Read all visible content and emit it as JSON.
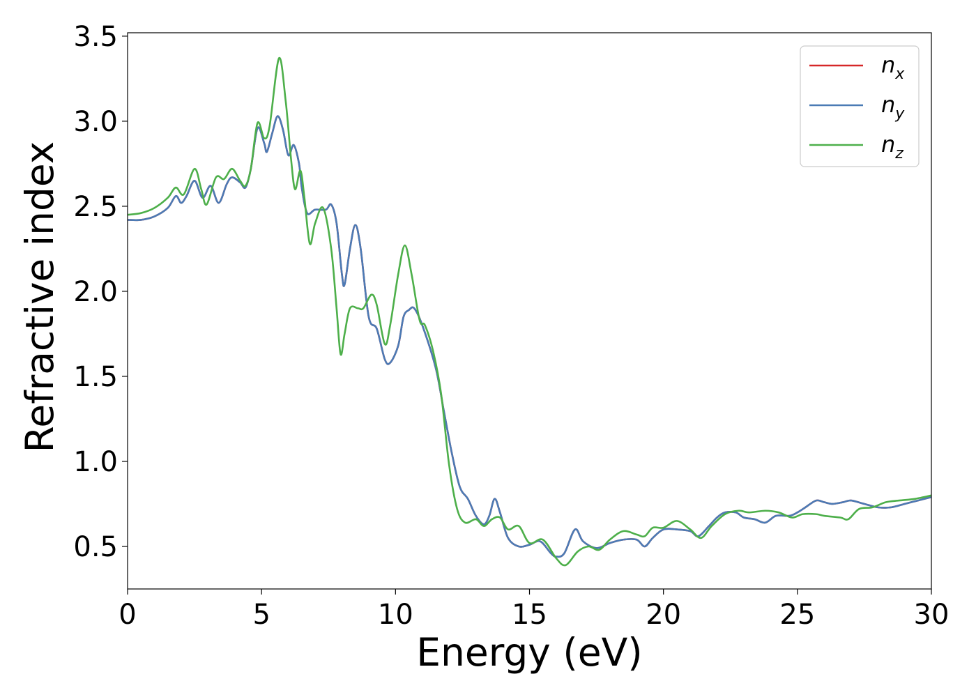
{
  "chart_data": {
    "type": "line",
    "xlabel": "Energy (eV)",
    "ylabel": "Refractive index",
    "xlim": [
      0,
      30
    ],
    "ylim": [
      0.25,
      3.52
    ],
    "xticks": [
      0,
      5,
      10,
      15,
      20,
      25,
      30
    ],
    "xtick_labels": [
      "0",
      "5",
      "10",
      "15",
      "20",
      "25",
      "30"
    ],
    "yticks": [
      0.5,
      1.0,
      1.5,
      2.0,
      2.5,
      3.0,
      3.5
    ],
    "ytick_labels": [
      "0.5",
      "1.0",
      "1.5",
      "2.0",
      "2.5",
      "3.0",
      "3.5"
    ],
    "grid": false,
    "legend_position": "top-right",
    "series": [
      {
        "name": "n_x",
        "label_base": "n",
        "label_sub": "x",
        "color": "#d62728",
        "points": [
          [
            0,
            2.42
          ],
          [
            0.5,
            2.42
          ],
          [
            1,
            2.44
          ],
          [
            1.5,
            2.49
          ],
          [
            1.8,
            2.56
          ],
          [
            2.0,
            2.52
          ],
          [
            2.2,
            2.56
          ],
          [
            2.5,
            2.65
          ],
          [
            2.8,
            2.55
          ],
          [
            3.1,
            2.62
          ],
          [
            3.4,
            2.52
          ],
          [
            3.7,
            2.63
          ],
          [
            3.9,
            2.67
          ],
          [
            4.2,
            2.64
          ],
          [
            4.4,
            2.61
          ],
          [
            4.6,
            2.72
          ],
          [
            4.85,
            2.96
          ],
          [
            5.1,
            2.87
          ],
          [
            5.2,
            2.82
          ],
          [
            5.4,
            2.93
          ],
          [
            5.6,
            3.03
          ],
          [
            5.8,
            2.95
          ],
          [
            6.0,
            2.8
          ],
          [
            6.2,
            2.86
          ],
          [
            6.4,
            2.75
          ],
          [
            6.5,
            2.61
          ],
          [
            6.7,
            2.46
          ],
          [
            7.0,
            2.48
          ],
          [
            7.4,
            2.48
          ],
          [
            7.6,
            2.51
          ],
          [
            7.8,
            2.4
          ],
          [
            8.0,
            2.1
          ],
          [
            8.1,
            2.04
          ],
          [
            8.3,
            2.25
          ],
          [
            8.5,
            2.39
          ],
          [
            8.7,
            2.25
          ],
          [
            9.0,
            1.85
          ],
          [
            9.3,
            1.78
          ],
          [
            9.6,
            1.6
          ],
          [
            9.8,
            1.58
          ],
          [
            10.1,
            1.68
          ],
          [
            10.3,
            1.85
          ],
          [
            10.5,
            1.89
          ],
          [
            10.7,
            1.9
          ],
          [
            11.0,
            1.8
          ],
          [
            11.5,
            1.55
          ],
          [
            11.8,
            1.3
          ],
          [
            12.1,
            1.05
          ],
          [
            12.4,
            0.85
          ],
          [
            12.7,
            0.78
          ],
          [
            13.0,
            0.68
          ],
          [
            13.3,
            0.63
          ],
          [
            13.5,
            0.68
          ],
          [
            13.7,
            0.78
          ],
          [
            13.9,
            0.7
          ],
          [
            14.2,
            0.55
          ],
          [
            14.6,
            0.5
          ],
          [
            15.0,
            0.51
          ],
          [
            15.4,
            0.53
          ],
          [
            15.8,
            0.46
          ],
          [
            16.0,
            0.44
          ],
          [
            16.3,
            0.46
          ],
          [
            16.7,
            0.6
          ],
          [
            17.0,
            0.53
          ],
          [
            17.5,
            0.49
          ],
          [
            18.0,
            0.52
          ],
          [
            18.5,
            0.54
          ],
          [
            19.0,
            0.54
          ],
          [
            19.3,
            0.5
          ],
          [
            19.6,
            0.55
          ],
          [
            20.0,
            0.6
          ],
          [
            20.5,
            0.6
          ],
          [
            21.0,
            0.59
          ],
          [
            21.3,
            0.56
          ],
          [
            21.7,
            0.62
          ],
          [
            22.0,
            0.67
          ],
          [
            22.3,
            0.7
          ],
          [
            22.7,
            0.7
          ],
          [
            23.0,
            0.67
          ],
          [
            23.4,
            0.66
          ],
          [
            23.8,
            0.64
          ],
          [
            24.2,
            0.68
          ],
          [
            24.7,
            0.68
          ],
          [
            25.0,
            0.7
          ],
          [
            25.3,
            0.73
          ],
          [
            25.7,
            0.77
          ],
          [
            26.0,
            0.76
          ],
          [
            26.3,
            0.75
          ],
          [
            26.7,
            0.76
          ],
          [
            27.0,
            0.77
          ],
          [
            27.5,
            0.75
          ],
          [
            28.0,
            0.73
          ],
          [
            28.5,
            0.73
          ],
          [
            29.0,
            0.75
          ],
          [
            29.5,
            0.77
          ],
          [
            30,
            0.79
          ]
        ]
      },
      {
        "name": "n_y",
        "label_base": "n",
        "label_sub": "y",
        "color": "#4b7bb5",
        "points": [
          [
            0,
            2.42
          ],
          [
            0.5,
            2.42
          ],
          [
            1,
            2.44
          ],
          [
            1.5,
            2.49
          ],
          [
            1.8,
            2.56
          ],
          [
            2.0,
            2.52
          ],
          [
            2.2,
            2.56
          ],
          [
            2.5,
            2.65
          ],
          [
            2.8,
            2.55
          ],
          [
            3.1,
            2.62
          ],
          [
            3.4,
            2.52
          ],
          [
            3.7,
            2.63
          ],
          [
            3.9,
            2.67
          ],
          [
            4.2,
            2.64
          ],
          [
            4.4,
            2.61
          ],
          [
            4.6,
            2.72
          ],
          [
            4.85,
            2.96
          ],
          [
            5.1,
            2.87
          ],
          [
            5.2,
            2.82
          ],
          [
            5.4,
            2.93
          ],
          [
            5.6,
            3.03
          ],
          [
            5.8,
            2.95
          ],
          [
            6.0,
            2.8
          ],
          [
            6.2,
            2.86
          ],
          [
            6.4,
            2.75
          ],
          [
            6.5,
            2.61
          ],
          [
            6.7,
            2.46
          ],
          [
            7.0,
            2.48
          ],
          [
            7.4,
            2.48
          ],
          [
            7.6,
            2.51
          ],
          [
            7.8,
            2.4
          ],
          [
            8.0,
            2.1
          ],
          [
            8.1,
            2.04
          ],
          [
            8.3,
            2.25
          ],
          [
            8.5,
            2.39
          ],
          [
            8.7,
            2.25
          ],
          [
            9.0,
            1.85
          ],
          [
            9.3,
            1.78
          ],
          [
            9.6,
            1.6
          ],
          [
            9.8,
            1.58
          ],
          [
            10.1,
            1.68
          ],
          [
            10.3,
            1.85
          ],
          [
            10.5,
            1.89
          ],
          [
            10.7,
            1.9
          ],
          [
            11.0,
            1.8
          ],
          [
            11.5,
            1.55
          ],
          [
            11.8,
            1.3
          ],
          [
            12.1,
            1.05
          ],
          [
            12.4,
            0.85
          ],
          [
            12.7,
            0.78
          ],
          [
            13.0,
            0.68
          ],
          [
            13.3,
            0.63
          ],
          [
            13.5,
            0.68
          ],
          [
            13.7,
            0.78
          ],
          [
            13.9,
            0.7
          ],
          [
            14.2,
            0.55
          ],
          [
            14.6,
            0.5
          ],
          [
            15.0,
            0.51
          ],
          [
            15.4,
            0.53
          ],
          [
            15.8,
            0.46
          ],
          [
            16.0,
            0.44
          ],
          [
            16.3,
            0.46
          ],
          [
            16.7,
            0.6
          ],
          [
            17.0,
            0.53
          ],
          [
            17.5,
            0.49
          ],
          [
            18.0,
            0.52
          ],
          [
            18.5,
            0.54
          ],
          [
            19.0,
            0.54
          ],
          [
            19.3,
            0.5
          ],
          [
            19.6,
            0.55
          ],
          [
            20.0,
            0.6
          ],
          [
            20.5,
            0.6
          ],
          [
            21.0,
            0.59
          ],
          [
            21.3,
            0.56
          ],
          [
            21.7,
            0.62
          ],
          [
            22.0,
            0.67
          ],
          [
            22.3,
            0.7
          ],
          [
            22.7,
            0.7
          ],
          [
            23.0,
            0.67
          ],
          [
            23.4,
            0.66
          ],
          [
            23.8,
            0.64
          ],
          [
            24.2,
            0.68
          ],
          [
            24.7,
            0.68
          ],
          [
            25.0,
            0.7
          ],
          [
            25.3,
            0.73
          ],
          [
            25.7,
            0.77
          ],
          [
            26.0,
            0.76
          ],
          [
            26.3,
            0.75
          ],
          [
            26.7,
            0.76
          ],
          [
            27.0,
            0.77
          ],
          [
            27.5,
            0.75
          ],
          [
            28.0,
            0.73
          ],
          [
            28.5,
            0.73
          ],
          [
            29.0,
            0.75
          ],
          [
            29.5,
            0.77
          ],
          [
            30,
            0.79
          ]
        ]
      },
      {
        "name": "n_z",
        "label_base": "n",
        "label_sub": "z",
        "color": "#4daf4a",
        "points": [
          [
            0,
            2.45
          ],
          [
            0.5,
            2.46
          ],
          [
            1,
            2.49
          ],
          [
            1.5,
            2.55
          ],
          [
            1.8,
            2.61
          ],
          [
            2.1,
            2.57
          ],
          [
            2.5,
            2.72
          ],
          [
            2.75,
            2.6
          ],
          [
            2.95,
            2.51
          ],
          [
            3.3,
            2.67
          ],
          [
            3.6,
            2.66
          ],
          [
            3.9,
            2.72
          ],
          [
            4.2,
            2.65
          ],
          [
            4.4,
            2.62
          ],
          [
            4.6,
            2.72
          ],
          [
            4.85,
            2.99
          ],
          [
            5.1,
            2.9
          ],
          [
            5.3,
            2.97
          ],
          [
            5.65,
            3.37
          ],
          [
            5.9,
            3.12
          ],
          [
            6.1,
            2.78
          ],
          [
            6.25,
            2.6
          ],
          [
            6.45,
            2.71
          ],
          [
            6.6,
            2.55
          ],
          [
            6.8,
            2.28
          ],
          [
            7.0,
            2.4
          ],
          [
            7.3,
            2.49
          ],
          [
            7.6,
            2.25
          ],
          [
            7.8,
            1.9
          ],
          [
            7.95,
            1.63
          ],
          [
            8.1,
            1.75
          ],
          [
            8.3,
            1.9
          ],
          [
            8.6,
            1.9
          ],
          [
            8.8,
            1.9
          ],
          [
            9.1,
            1.98
          ],
          [
            9.3,
            1.92
          ],
          [
            9.6,
            1.69
          ],
          [
            9.8,
            1.8
          ],
          [
            10.1,
            2.1
          ],
          [
            10.35,
            2.27
          ],
          [
            10.6,
            2.1
          ],
          [
            10.9,
            1.83
          ],
          [
            11.1,
            1.8
          ],
          [
            11.4,
            1.65
          ],
          [
            11.7,
            1.4
          ],
          [
            12.0,
            0.98
          ],
          [
            12.3,
            0.72
          ],
          [
            12.6,
            0.64
          ],
          [
            13.0,
            0.66
          ],
          [
            13.3,
            0.62
          ],
          [
            13.6,
            0.66
          ],
          [
            13.9,
            0.67
          ],
          [
            14.2,
            0.6
          ],
          [
            14.6,
            0.62
          ],
          [
            15.0,
            0.52
          ],
          [
            15.5,
            0.54
          ],
          [
            16.0,
            0.43
          ],
          [
            16.35,
            0.39
          ],
          [
            16.8,
            0.47
          ],
          [
            17.2,
            0.5
          ],
          [
            17.6,
            0.48
          ],
          [
            18.0,
            0.54
          ],
          [
            18.5,
            0.59
          ],
          [
            19.0,
            0.57
          ],
          [
            19.3,
            0.56
          ],
          [
            19.6,
            0.61
          ],
          [
            20.0,
            0.61
          ],
          [
            20.5,
            0.65
          ],
          [
            21.0,
            0.6
          ],
          [
            21.4,
            0.55
          ],
          [
            21.8,
            0.62
          ],
          [
            22.3,
            0.69
          ],
          [
            22.8,
            0.71
          ],
          [
            23.2,
            0.7
          ],
          [
            23.8,
            0.71
          ],
          [
            24.3,
            0.7
          ],
          [
            24.8,
            0.67
          ],
          [
            25.2,
            0.69
          ],
          [
            25.7,
            0.69
          ],
          [
            26.0,
            0.68
          ],
          [
            26.6,
            0.67
          ],
          [
            26.9,
            0.66
          ],
          [
            27.3,
            0.72
          ],
          [
            27.8,
            0.73
          ],
          [
            28.3,
            0.76
          ],
          [
            28.8,
            0.77
          ],
          [
            29.4,
            0.78
          ],
          [
            30,
            0.8
          ]
        ]
      }
    ]
  }
}
